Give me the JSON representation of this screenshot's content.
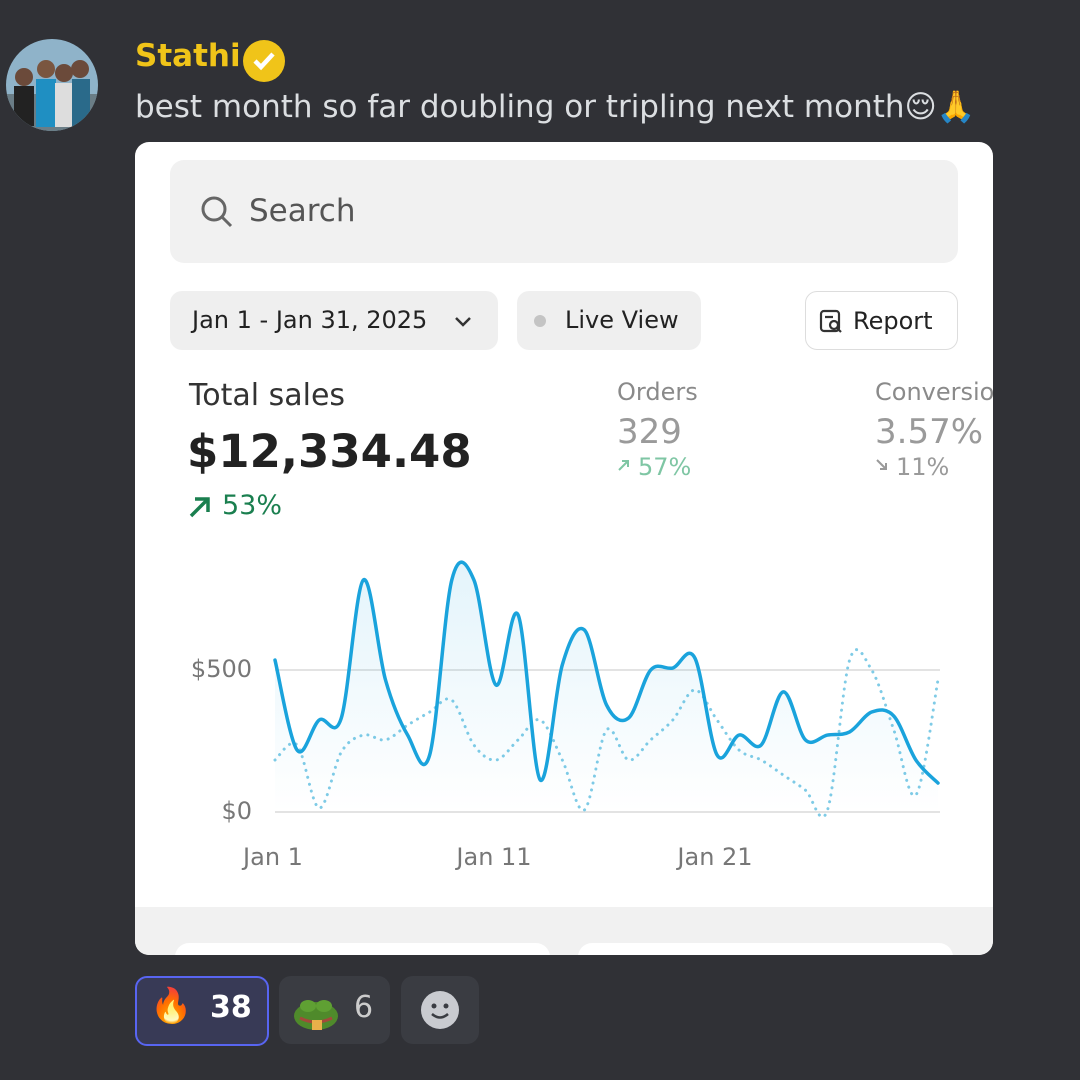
{
  "message": {
    "author": "Stathi",
    "text": "best month so far doubling or tripling next month😌🙏"
  },
  "dashboard": {
    "search_placeholder": "Search",
    "date_range": "Jan 1 - Jan 31, 2025",
    "live_view": "Live View",
    "report": "Report",
    "metrics": [
      {
        "label": "Total sales",
        "value": "$12,334.48",
        "change": "53%"
      },
      {
        "label": "Orders",
        "value": "329",
        "change": "57%"
      },
      {
        "label": "Conversion",
        "value": "3.57%",
        "change": "11%"
      }
    ]
  },
  "chart_data": {
    "type": "line",
    "x": [
      1,
      2,
      3,
      4,
      5,
      6,
      7,
      8,
      9,
      10,
      11,
      12,
      13,
      14,
      15,
      16,
      17,
      18,
      19,
      20,
      21,
      22,
      23,
      24,
      25,
      26,
      27,
      28,
      29,
      30,
      31
    ],
    "series": [
      {
        "color": "#1aa3dc",
        "style": "solid",
        "values": [
          535,
          218,
          324,
          331,
          817,
          465,
          271,
          201,
          817,
          817,
          447,
          694,
          113,
          518,
          641,
          377,
          331,
          500,
          507,
          542,
          201,
          271,
          236,
          423,
          254,
          271,
          282,
          352,
          338,
          183,
          102
        ]
      },
      {
        "color": "#7fcbe6",
        "style": "dotted",
        "values": [
          183,
          236,
          14,
          211,
          271,
          254,
          306,
          352,
          394,
          236,
          183,
          254,
          324,
          183,
          7,
          289,
          183,
          254,
          324,
          430,
          324,
          218,
          183,
          130,
          77,
          7,
          535,
          500,
          289,
          60,
          465
        ]
      }
    ],
    "xlim": [
      1,
      31
    ],
    "xticks": [
      {
        "value": 1,
        "label": "Jan 1"
      },
      {
        "value": 11,
        "label": "Jan 11"
      },
      {
        "value": 21,
        "label": "Jan 21"
      }
    ],
    "ylim": [
      0,
      850
    ],
    "yticks": [
      {
        "value": 0,
        "label": "$0"
      },
      {
        "value": 500,
        "label": "$500"
      }
    ],
    "grid": true
  },
  "reactions": [
    {
      "emoji": "🔥",
      "count": 38
    },
    {
      "count": 6
    }
  ]
}
